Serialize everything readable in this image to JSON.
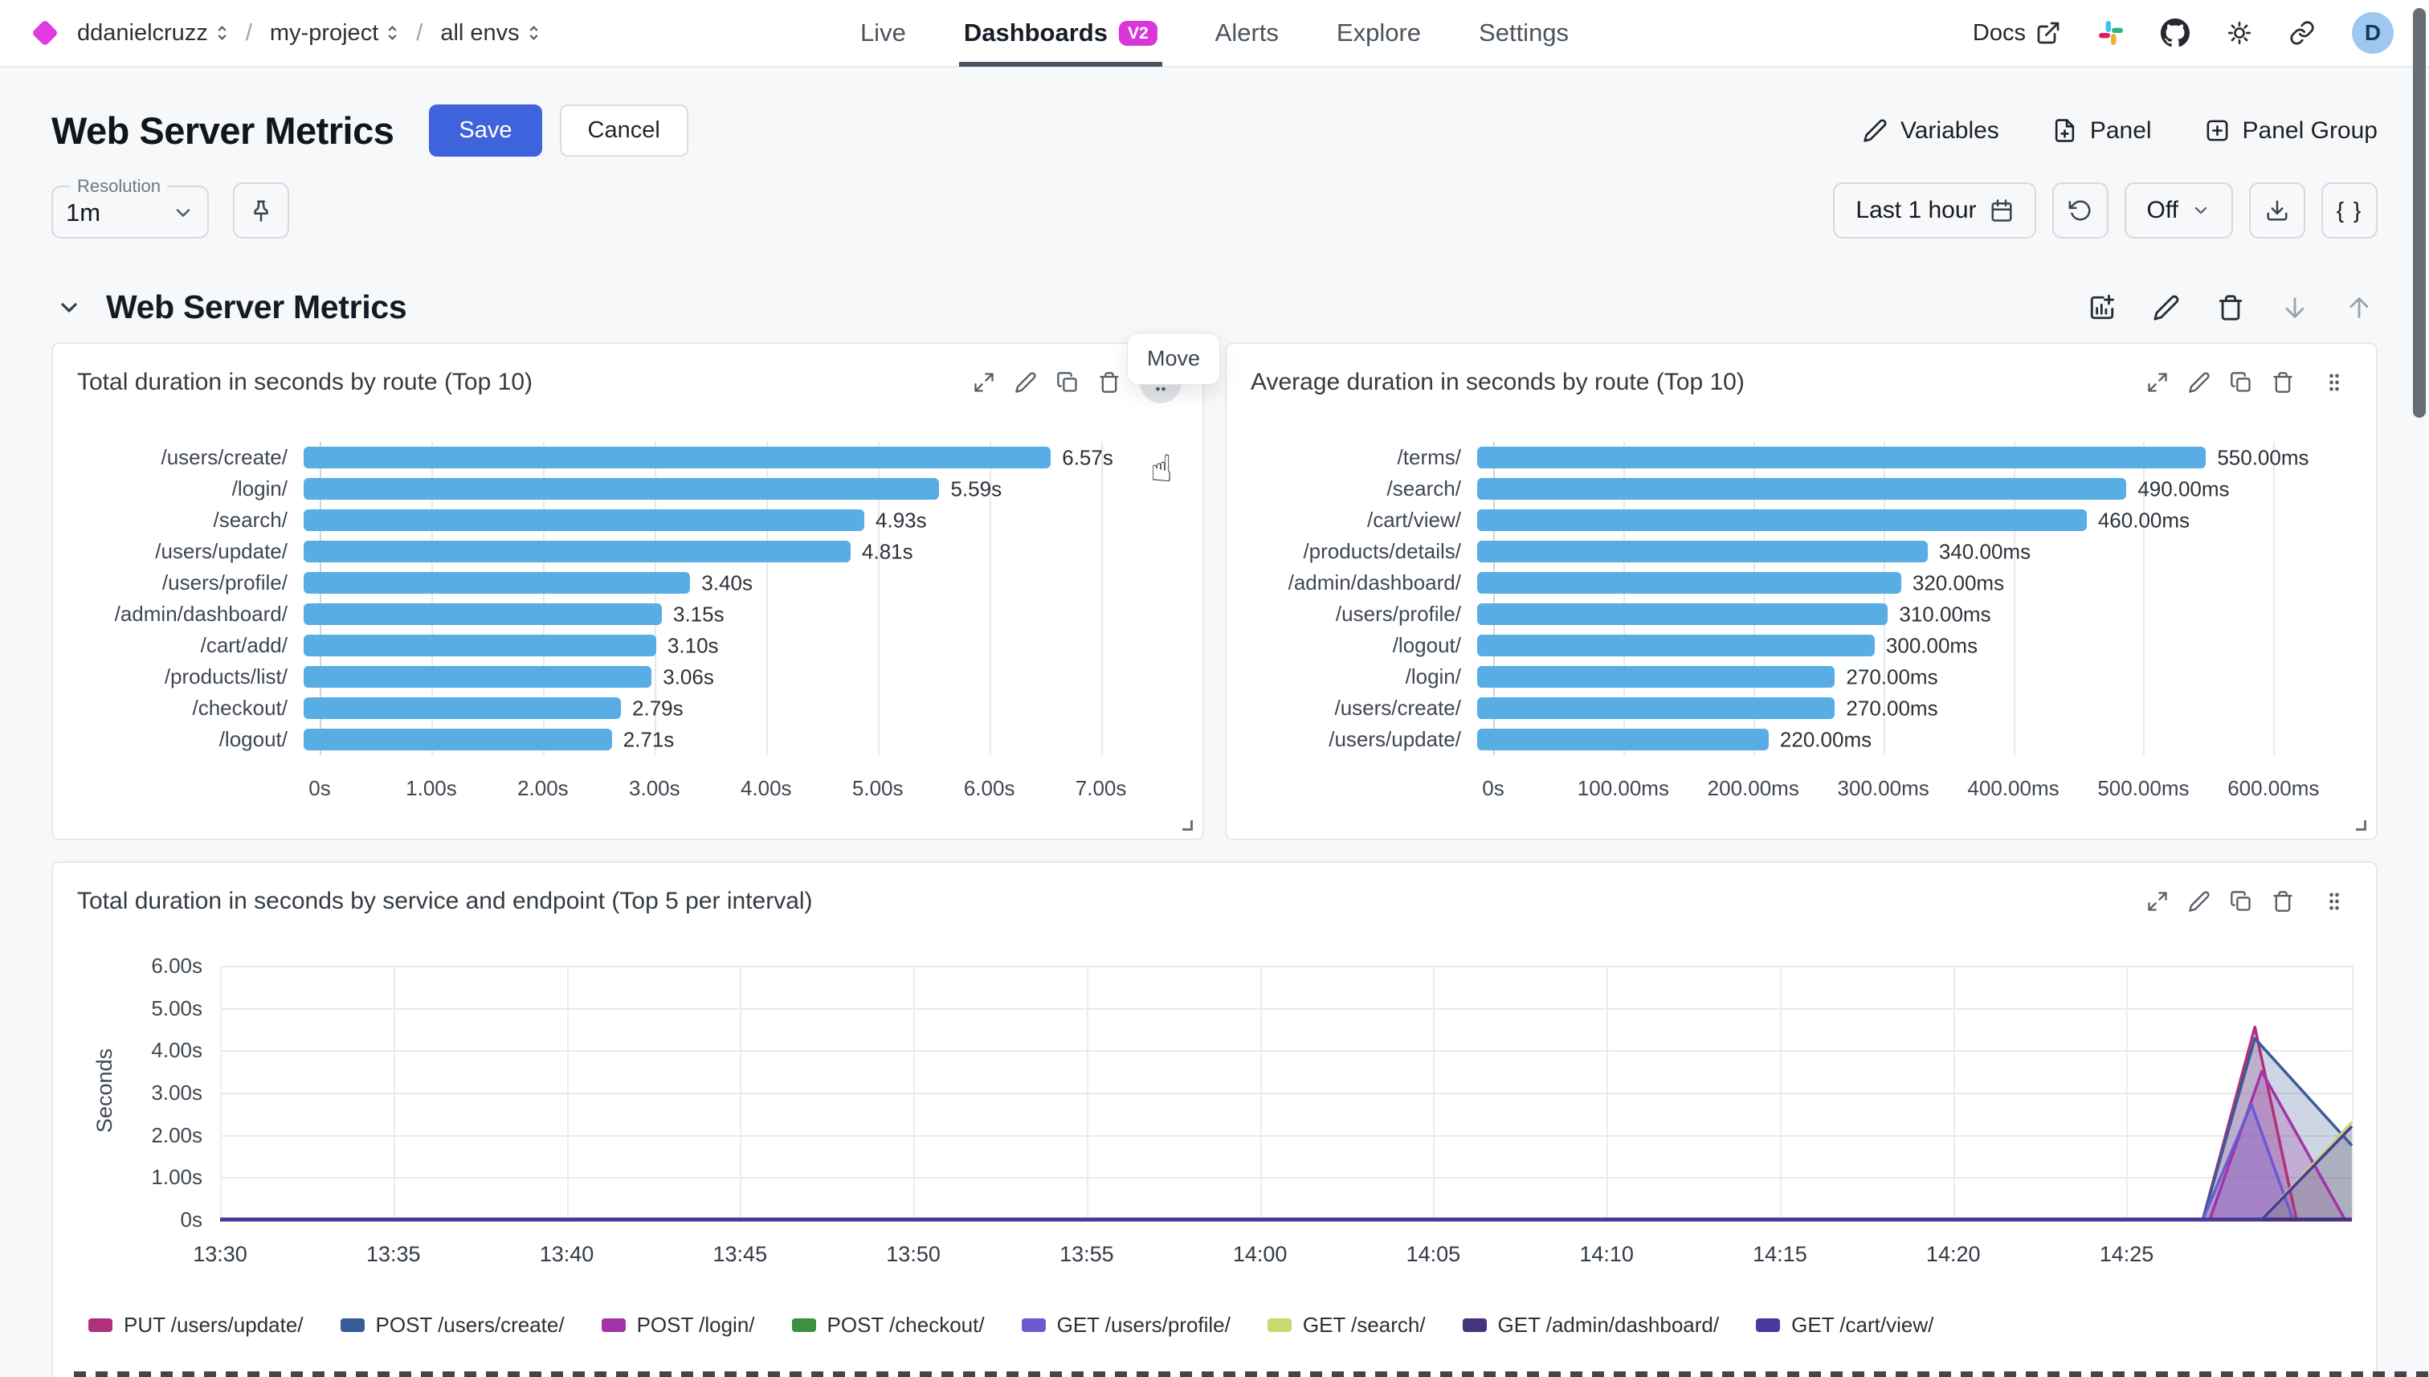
{
  "header": {
    "breadcrumb": [
      {
        "label": "ddanielcruzz"
      },
      {
        "label": "my-project"
      },
      {
        "label": "all envs"
      }
    ],
    "breadcrumb_separator": "/",
    "nav": [
      {
        "label": "Live",
        "active": false
      },
      {
        "label": "Dashboards",
        "active": true,
        "badge": "V2"
      },
      {
        "label": "Alerts",
        "active": false
      },
      {
        "label": "Explore",
        "active": false
      },
      {
        "label": "Settings",
        "active": false
      }
    ],
    "docs_label": "Docs",
    "avatar_letter": "D"
  },
  "toolbar": {
    "title": "Web Server Metrics",
    "save_label": "Save",
    "cancel_label": "Cancel",
    "variables_label": "Variables",
    "panel_label": "Panel",
    "panel_group_label": "Panel Group"
  },
  "controls": {
    "resolution_label": "Resolution",
    "resolution_value": "1m",
    "time_range": "Last 1 hour",
    "auto_refresh": "Off",
    "json_button": "{ }"
  },
  "section": {
    "title": "Web Server Metrics",
    "move_tooltip": "Move"
  },
  "colors": {
    "accent_blue": "#3e63dd",
    "bar_blue": "#58ade4",
    "badge_magenta": "#d836d8",
    "brand_magenta": "#e23ae2",
    "avatar_bg": "#9ec8f2",
    "active_tab_underline": "#47535f"
  },
  "chart_data": [
    {
      "type": "bar",
      "orientation": "horizontal",
      "title": "Total duration in seconds by route (Top 10)",
      "categories": [
        "/users/create/",
        "/login/",
        "/search/",
        "/users/update/",
        "/users/profile/",
        "/admin/dashboard/",
        "/cart/add/",
        "/products/list/",
        "/checkout/",
        "/logout/"
      ],
      "values": [
        6.57,
        5.59,
        4.93,
        4.81,
        3.4,
        3.15,
        3.1,
        3.06,
        2.79,
        2.71
      ],
      "value_labels": [
        "6.57s",
        "5.59s",
        "4.93s",
        "4.81s",
        "3.40s",
        "3.15s",
        "3.10s",
        "3.06s",
        "2.79s",
        "2.71s"
      ],
      "x_ticks": [
        {
          "label": "0s",
          "value": 0
        },
        {
          "label": "1.00s",
          "value": 1
        },
        {
          "label": "2.00s",
          "value": 2
        },
        {
          "label": "3.00s",
          "value": 3
        },
        {
          "label": "4.00s",
          "value": 4
        },
        {
          "label": "5.00s",
          "value": 5
        },
        {
          "label": "6.00s",
          "value": 6
        },
        {
          "label": "7.00s",
          "value": 7
        }
      ],
      "axis_max": 7.55,
      "bar_color": "#58ade4",
      "grid": true
    },
    {
      "type": "bar",
      "orientation": "horizontal",
      "title": "Average duration in seconds by route (Top 10)",
      "categories": [
        "/terms/",
        "/search/",
        "/cart/view/",
        "/products/details/",
        "/admin/dashboard/",
        "/users/profile/",
        "/logout/",
        "/login/",
        "/users/create/",
        "/users/update/"
      ],
      "values": [
        550,
        490,
        460,
        340,
        320,
        310,
        300,
        270,
        270,
        220
      ],
      "value_labels": [
        "550.00ms",
        "490.00ms",
        "460.00ms",
        "340.00ms",
        "320.00ms",
        "310.00ms",
        "300.00ms",
        "270.00ms",
        "270.00ms",
        "220.00ms"
      ],
      "x_ticks": [
        {
          "label": "0s",
          "value": 0
        },
        {
          "label": "100.00ms",
          "value": 100
        },
        {
          "label": "200.00ms",
          "value": 200
        },
        {
          "label": "300.00ms",
          "value": 300
        },
        {
          "label": "400.00ms",
          "value": 400
        },
        {
          "label": "500.00ms",
          "value": 500
        },
        {
          "label": "600.00ms",
          "value": 600
        }
      ],
      "axis_max": 648,
      "bar_color": "#58ade4",
      "grid": true
    },
    {
      "type": "area",
      "title": "Total duration in seconds by service and endpoint (Top 5 per interval)",
      "ylabel": "Seconds",
      "ylim": [
        0,
        6
      ],
      "y_ticks": [
        {
          "label": "0s",
          "value": 0
        },
        {
          "label": "1.00s",
          "value": 1
        },
        {
          "label": "2.00s",
          "value": 2
        },
        {
          "label": "3.00s",
          "value": 3
        },
        {
          "label": "4.00s",
          "value": 4
        },
        {
          "label": "5.00s",
          "value": 5
        },
        {
          "label": "6.00s",
          "value": 6
        }
      ],
      "x_ticks": [
        {
          "label": "13:30",
          "minute": 0
        },
        {
          "label": "13:35",
          "minute": 5
        },
        {
          "label": "13:40",
          "minute": 10
        },
        {
          "label": "13:45",
          "minute": 15
        },
        {
          "label": "13:50",
          "minute": 20
        },
        {
          "label": "13:55",
          "minute": 25
        },
        {
          "label": "14:00",
          "minute": 30
        },
        {
          "label": "14:05",
          "minute": 35
        },
        {
          "label": "14:10",
          "minute": 40
        },
        {
          "label": "14:15",
          "minute": 45
        },
        {
          "label": "14:20",
          "minute": 50
        },
        {
          "label": "14:25",
          "minute": 55
        }
      ],
      "x_minutes_range": [
        0,
        61.5
      ],
      "grid": true,
      "legend_position": "bottom",
      "series": [
        {
          "name": "PUT /users/update/",
          "color": "#b0307c",
          "points": [
            [
              0,
              0
            ],
            [
              57.2,
              0
            ],
            [
              58.7,
              4.55
            ],
            [
              59.9,
              0
            ],
            [
              61.5,
              0
            ]
          ]
        },
        {
          "name": "POST /users/create/",
          "color": "#3a5c96",
          "points": [
            [
              0,
              0
            ],
            [
              57.2,
              0
            ],
            [
              58.7,
              4.28
            ],
            [
              61.5,
              1.75
            ]
          ]
        },
        {
          "name": "POST /login/",
          "color": "#a034a8",
          "points": [
            [
              0,
              0
            ],
            [
              57.4,
              0
            ],
            [
              58.9,
              3.5
            ],
            [
              61.3,
              0
            ],
            [
              61.5,
              0
            ]
          ]
        },
        {
          "name": "POST /checkout/",
          "color": "#3d8f41",
          "points": [
            [
              0,
              0
            ],
            [
              61.5,
              0
            ]
          ]
        },
        {
          "name": "GET /users/profile/",
          "color": "#6a5bd0",
          "points": [
            [
              0,
              0
            ],
            [
              57.2,
              0
            ],
            [
              58.6,
              2.72
            ],
            [
              59.8,
              0
            ],
            [
              61.5,
              0
            ]
          ]
        },
        {
          "name": "GET /search/",
          "color": "#c9d96e",
          "points": [
            [
              0,
              0
            ],
            [
              58.9,
              0
            ],
            [
              61.5,
              2.3
            ]
          ]
        },
        {
          "name": "GET /admin/dashboard/",
          "color": "#46337e",
          "points": [
            [
              0,
              0
            ],
            [
              61.5,
              0
            ]
          ]
        },
        {
          "name": "GET /cart/view/",
          "color": "#4a3a9e",
          "points": [
            [
              0,
              0
            ],
            [
              58.9,
              0
            ],
            [
              61.5,
              2.2
            ]
          ]
        }
      ]
    }
  ]
}
